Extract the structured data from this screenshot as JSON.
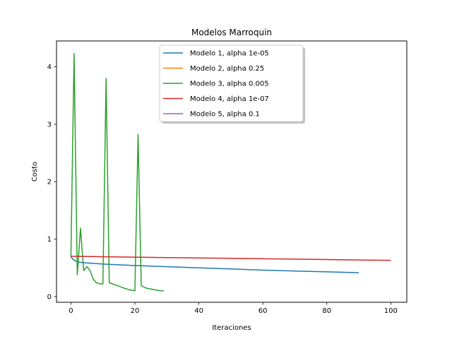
{
  "chart_data": {
    "type": "line",
    "title": "Modelos Marroquin",
    "xlabel": "Iteraciones",
    "ylabel": "Costo",
    "xlim": [
      -4.5,
      105
    ],
    "ylim": [
      -0.1,
      4.45
    ],
    "xticks": [
      0,
      20,
      40,
      60,
      80,
      100
    ],
    "yticks": [
      0,
      1,
      2,
      3,
      4
    ],
    "grid": false,
    "legend_position": "upper center",
    "series": [
      {
        "name": "Modelo 1, alpha 1e-05",
        "color": "#1f77b4",
        "x": [
          0,
          1,
          2,
          3,
          5,
          10,
          20,
          30,
          40,
          50,
          60,
          70,
          80,
          90
        ],
        "y": [
          0.69,
          0.63,
          0.605,
          0.595,
          0.585,
          0.565,
          0.54,
          0.52,
          0.5,
          0.48,
          0.46,
          0.445,
          0.43,
          0.415
        ]
      },
      {
        "name": "Modelo 2, alpha 0.25",
        "color": "#ff7f0e",
        "x": [],
        "y": []
      },
      {
        "name": "Modelo 3, alpha 0.005",
        "color": "#2ca02c",
        "x": [
          0,
          1,
          2,
          3,
          4,
          5,
          6,
          7,
          8,
          9,
          10,
          11,
          12,
          13,
          14,
          15,
          16,
          17,
          18,
          19,
          20,
          21,
          22,
          23,
          24,
          25,
          26,
          27,
          28,
          29
        ],
        "y": [
          0.69,
          4.23,
          0.38,
          1.19,
          0.45,
          0.52,
          0.45,
          0.3,
          0.24,
          0.22,
          0.22,
          3.8,
          0.24,
          0.22,
          0.2,
          0.18,
          0.16,
          0.14,
          0.12,
          0.11,
          0.1,
          2.82,
          0.19,
          0.16,
          0.14,
          0.13,
          0.12,
          0.11,
          0.1,
          0.1
        ]
      },
      {
        "name": "Modelo 4, alpha 1e-07",
        "color": "#d62728",
        "x": [
          0,
          10,
          20,
          30,
          40,
          50,
          60,
          70,
          80,
          90,
          100
        ],
        "y": [
          0.7,
          0.693,
          0.686,
          0.679,
          0.672,
          0.665,
          0.658,
          0.651,
          0.644,
          0.637,
          0.63
        ]
      },
      {
        "name": "Modelo 5, alpha 0.1",
        "color": "#9467bd",
        "x": [],
        "y": []
      }
    ]
  }
}
